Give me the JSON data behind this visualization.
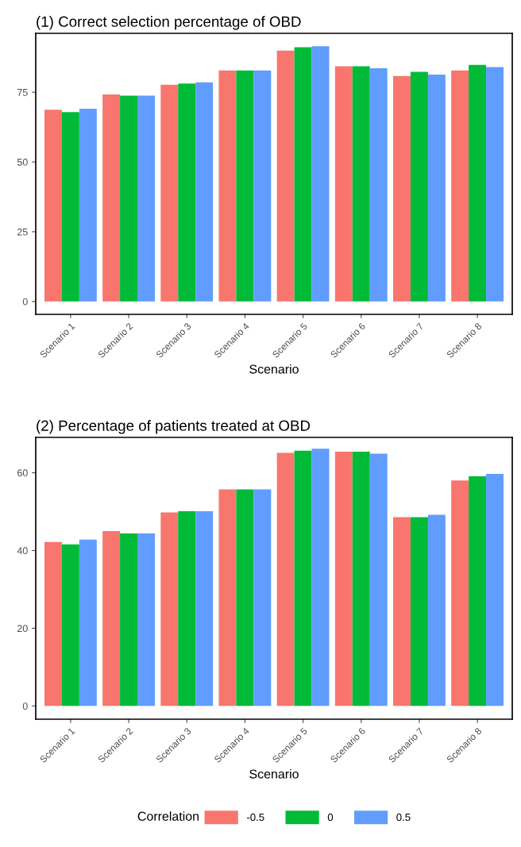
{
  "chart_data": [
    {
      "type": "bar",
      "title": "(1) Correct selection percentage of OBD",
      "xlabel": "Scenario",
      "categories": [
        "Scenario 1",
        "Scenario 2",
        "Scenario 3",
        "Scenario 4",
        "Scenario 5",
        "Scenario 6",
        "Scenario 7",
        "Scenario 8"
      ],
      "series": [
        {
          "name": "-0.5",
          "color": "#f8766d",
          "values": [
            68.7,
            74.2,
            77.7,
            82.8,
            89.9,
            84.3,
            80.8,
            82.8
          ]
        },
        {
          "name": "0",
          "color": "#00ba38",
          "values": [
            67.9,
            73.8,
            78.1,
            82.8,
            91.1,
            84.3,
            82.3,
            84.8
          ]
        },
        {
          "name": "0.5",
          "color": "#619cff",
          "values": [
            69.1,
            73.8,
            78.5,
            82.8,
            91.5,
            83.6,
            81.3,
            84.0
          ]
        }
      ],
      "ylim": [
        -4.6,
        96.1
      ],
      "yticks": [
        0,
        25,
        50,
        75
      ],
      "grid": false,
      "legend": "bottom",
      "legend_title": "Correlation"
    },
    {
      "type": "bar",
      "title": "(2) Percentage of patients treated at OBD",
      "xlabel": "Scenario",
      "categories": [
        "Scenario 1",
        "Scenario 2",
        "Scenario 3",
        "Scenario 4",
        "Scenario 5",
        "Scenario 6",
        "Scenario 7",
        "Scenario 8"
      ],
      "series": [
        {
          "name": "-0.5",
          "color": "#f8766d",
          "values": [
            42.2,
            45.0,
            49.8,
            55.7,
            65.1,
            65.4,
            48.6,
            58.0
          ]
        },
        {
          "name": "0",
          "color": "#00ba38",
          "values": [
            41.6,
            44.4,
            50.1,
            55.7,
            65.7,
            65.4,
            48.6,
            59.1
          ]
        },
        {
          "name": "0.5",
          "color": "#619cff",
          "values": [
            42.8,
            44.4,
            50.1,
            55.7,
            66.2,
            64.9,
            49.2,
            59.7
          ]
        }
      ],
      "ylim": [
        -3.4,
        69.1
      ],
      "yticks": [
        0,
        20,
        40,
        60
      ],
      "grid": false,
      "legend": false
    }
  ]
}
